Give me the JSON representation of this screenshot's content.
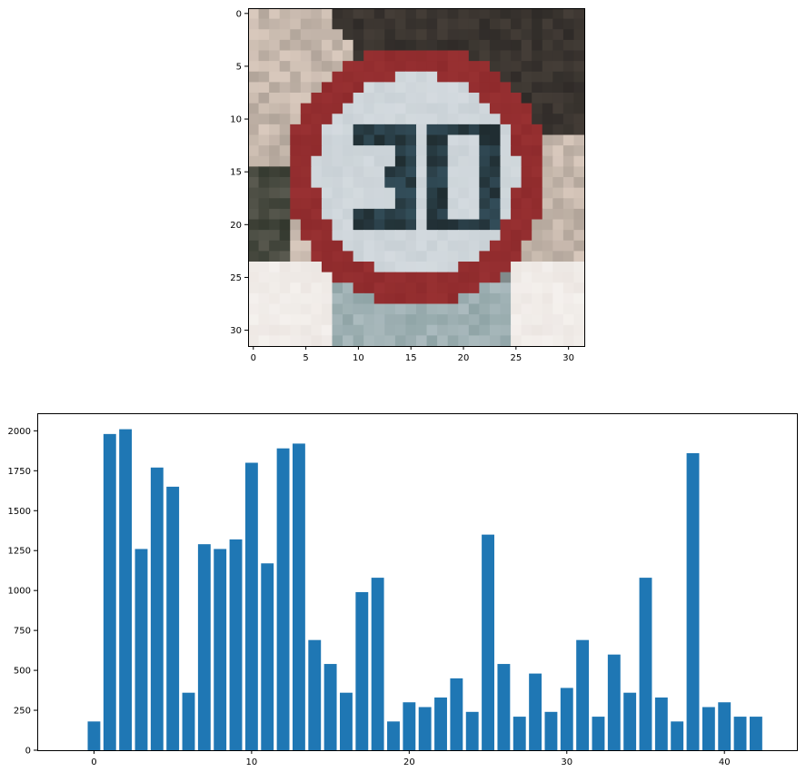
{
  "figure": {
    "background": "#ffffff",
    "text_color": "#000000"
  },
  "image_panel": {
    "type": "image",
    "description_kind": "pixelated 32x32 speed-limit sign (red ring, white disc)",
    "sign_text": "30",
    "colors": {
      "ring": "#8e2a2c",
      "disc": "#c9d1d6",
      "digits": "#1f2c30",
      "background_left": "#d9c9bd",
      "background_top_right": "#2f2b28",
      "background_bottom": "#ece6e2",
      "post": "#8fa4a6"
    },
    "x_ticks": [
      "0",
      "5",
      "10",
      "15",
      "20",
      "25",
      "30"
    ],
    "y_ticks": [
      "0",
      "5",
      "10",
      "15",
      "20",
      "25",
      "30"
    ],
    "xlim": [
      -0.5,
      31.5
    ],
    "ylim": [
      31.5,
      -0.5
    ]
  },
  "chart_data": {
    "type": "bar",
    "categories": [
      0,
      1,
      2,
      3,
      4,
      5,
      6,
      7,
      8,
      9,
      10,
      11,
      12,
      13,
      14,
      15,
      16,
      17,
      18,
      19,
      20,
      21,
      22,
      23,
      24,
      25,
      26,
      27,
      28,
      29,
      30,
      31,
      32,
      33,
      34,
      35,
      36,
      37,
      38,
      39,
      40,
      41,
      42
    ],
    "values": [
      180,
      1980,
      2010,
      1260,
      1770,
      1650,
      360,
      1290,
      1260,
      1320,
      1800,
      1170,
      1890,
      1920,
      690,
      540,
      360,
      990,
      1080,
      180,
      300,
      270,
      330,
      450,
      240,
      1350,
      540,
      210,
      480,
      240,
      390,
      690,
      210,
      599,
      360,
      1080,
      330,
      180,
      1860,
      270,
      300,
      210,
      210
    ],
    "color": "#1f77b4",
    "title": "",
    "xlabel": "",
    "ylabel": "",
    "xlim": [
      -3.6,
      44.6
    ],
    "ylim": [
      0,
      2110
    ],
    "x_ticks": [
      "0",
      "10",
      "20",
      "30",
      "40"
    ],
    "y_ticks": [
      "0",
      "250",
      "500",
      "750",
      "1000",
      "1250",
      "1500",
      "1750",
      "2000"
    ],
    "grid": false,
    "legend": "none"
  }
}
